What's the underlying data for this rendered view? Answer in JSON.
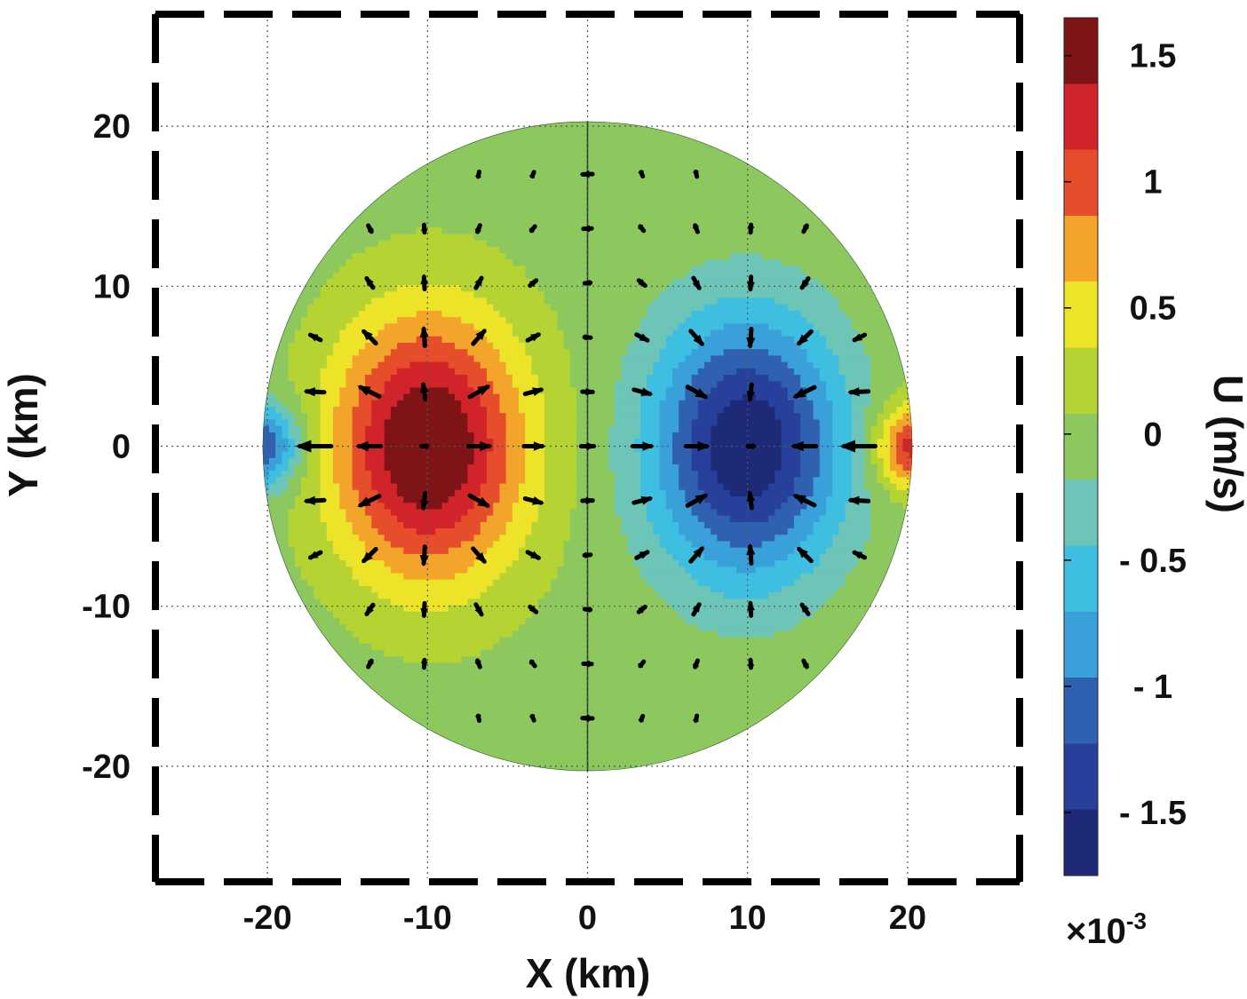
{
  "chart_data": {
    "type": "heatmap",
    "xlabel": "X (km)",
    "ylabel": "Y (km)",
    "xlim": [
      -27,
      27
    ],
    "ylim": [
      -27,
      27
    ],
    "xticks": [
      -20,
      -10,
      0,
      10,
      20
    ],
    "yticks": [
      -20,
      -10,
      0,
      10,
      20
    ],
    "xtick_labels": [
      "-20",
      "-10",
      "0",
      "10",
      "20"
    ],
    "ytick_labels": [
      "20",
      "10",
      "0",
      "-10",
      "-20"
    ],
    "grid": true,
    "domain_radius_km": 20.3,
    "field": {
      "quantity": "U",
      "pattern": "dipole: positive lobe centered near x = -10 km, negative lobe near x = +10 km, small opposite-sign lobes at the rim near x = ±20 km, y = 0",
      "main_lobe_centers": [
        [
          -10,
          0
        ],
        [
          10,
          0
        ]
      ],
      "rim_lobe_centers": [
        [
          -20,
          0
        ],
        [
          20,
          0
        ]
      ],
      "peak_abs_value": 1.6
    },
    "vectors": "velocity arrows on a ~3.4 km grid, pointing from the positive lobe toward the negative lobe, largest (about 0.9 km arrow length) at the lobe centres and small near the rim",
    "colorbar": {
      "label": "U (m/s)",
      "range": [
        -1.75,
        1.65
      ],
      "ticks": [
        1.5,
        1,
        0.5,
        0,
        -0.5,
        -1,
        -1.5
      ],
      "tick_labels": [
        "1.5",
        "1",
        "0.5",
        "0",
        "- 0.5",
        "- 1",
        "- 1.5"
      ],
      "multiplier_base": "×10",
      "multiplier_exponent": "-3",
      "colormap": "jet",
      "colors": [
        "#1e2a78",
        "#27409b",
        "#3060b0",
        "#3aa0da",
        "#3ebee0",
        "#6dc5b8",
        "#8cc85e",
        "#b5d433",
        "#ede42a",
        "#f2a42b",
        "#e64d2b",
        "#d1232a",
        "#7e1416"
      ]
    }
  }
}
